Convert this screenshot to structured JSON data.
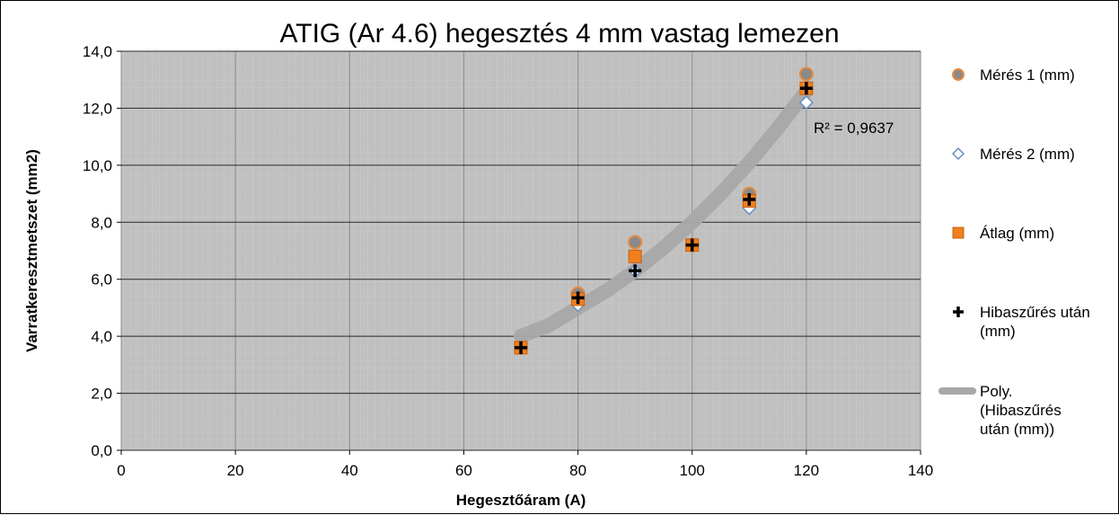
{
  "chart_data": {
    "type": "scatter",
    "title": "ATIG (Ar 4.6) hegesztés 4 mm vastag lemezen",
    "xlabel": "Hegesztőáram (A)",
    "ylabel": "Varratkeresztmetszet (mm2)",
    "xlim": [
      0,
      140
    ],
    "ylim": [
      0,
      14
    ],
    "xticks": [
      "0",
      "20",
      "40",
      "60",
      "80",
      "100",
      "120",
      "140"
    ],
    "yticks": [
      "0,0",
      "2,0",
      "4,0",
      "6,0",
      "8,0",
      "10,0",
      "12,0",
      "14,0"
    ],
    "grid": true,
    "legend_position": "right",
    "plot_background": "#c0c0c0",
    "series": [
      {
        "name": "Mérés 1 (mm)",
        "marker": "circle",
        "color": "#8a8a8a",
        "edge": "#e8893a",
        "x": [
          70,
          80,
          90,
          100,
          110,
          120
        ],
        "y": [
          3.6,
          5.5,
          7.3,
          7.2,
          9.0,
          13.2
        ]
      },
      {
        "name": "Mérés 2 (mm)",
        "marker": "diamond",
        "color": "#ffffff",
        "edge": "#6a8fc0",
        "x": [
          70,
          80,
          90,
          100,
          110,
          120
        ],
        "y": [
          3.6,
          5.1,
          6.3,
          7.2,
          8.5,
          12.2
        ]
      },
      {
        "name": "Átlag (mm)",
        "marker": "square",
        "color": "#f07f1c",
        "edge": "#c86010",
        "x": [
          70,
          80,
          90,
          100,
          110,
          120
        ],
        "y": [
          3.6,
          5.3,
          6.8,
          7.2,
          8.75,
          12.7
        ]
      },
      {
        "name": "Hibaszűrés után (mm)",
        "marker": "plus",
        "color": "#000000",
        "x": [
          70,
          80,
          90,
          100,
          110,
          120
        ],
        "y": [
          3.6,
          5.35,
          6.3,
          7.2,
          8.8,
          12.7
        ]
      }
    ],
    "trendline": {
      "name": "Poly. (Hibaszűrés után (mm))",
      "type": "polynomial",
      "color": "#a8a8a8",
      "x": [
        70,
        75,
        80,
        85,
        90,
        95,
        100,
        105,
        110,
        115,
        120
      ],
      "y": [
        4.0,
        4.4,
        5.0,
        5.6,
        6.3,
        7.1,
        8.0,
        9.0,
        10.1,
        11.3,
        12.6
      ],
      "r_squared_label": "R² = 0,9637"
    }
  }
}
